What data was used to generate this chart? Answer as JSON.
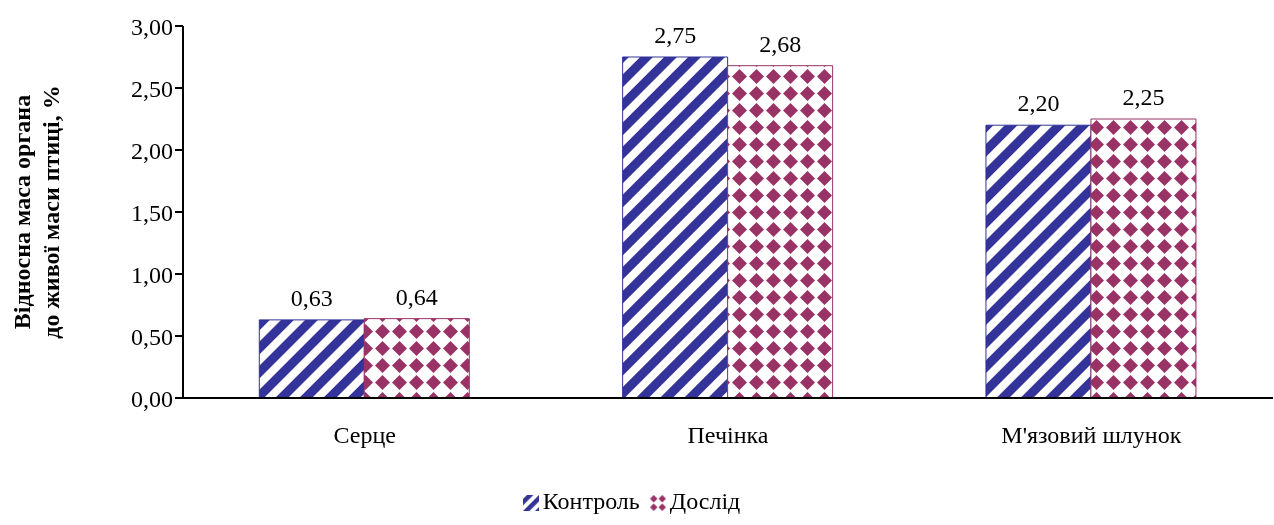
{
  "chart_data": {
    "type": "bar",
    "ylabel": "Відносна маса органа до живої  маси птиці, %",
    "categories": [
      "Серце",
      "Печінка",
      "М'язовий шлунок"
    ],
    "series": [
      {
        "name": "Контроль",
        "color": "#333399",
        "values": [
          0.63,
          2.75,
          2.2
        ],
        "value_labels": [
          "0,63",
          "2,75",
          "2,20"
        ]
      },
      {
        "name": "Дослід",
        "color": "#993366",
        "values": [
          0.64,
          2.68,
          2.25
        ],
        "value_labels": [
          "0,64",
          "2,68",
          "2,25"
        ]
      }
    ],
    "ylim": [
      0,
      3
    ],
    "yticks": [
      {
        "value": 0,
        "label": "0,00"
      },
      {
        "value": 0.5,
        "label": "0,50"
      },
      {
        "value": 1,
        "label": "1,00"
      },
      {
        "value": 1.5,
        "label": "1,50"
      },
      {
        "value": 2,
        "label": "2,00"
      },
      {
        "value": 2.5,
        "label": "2,50"
      },
      {
        "value": 3,
        "label": "3,00"
      }
    ],
    "grid": false,
    "legend": "bottom"
  }
}
